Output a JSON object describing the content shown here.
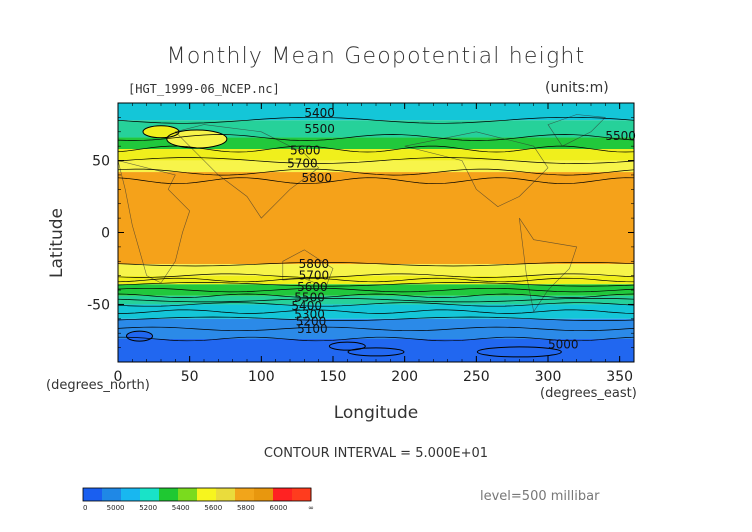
{
  "chart_data": {
    "type": "heatmap",
    "title": "Monthly Mean Geopotential height",
    "subtitle_left": "[HGT_1999-06_NCEP.nc]",
    "subtitle_right": "(units:m)",
    "xlabel": "Longitude",
    "ylabel": "Latitude",
    "x_unit": "(degrees_north)",
    "y_unit": "(degrees_east)",
    "xlim": [
      0,
      360
    ],
    "ylim": [
      -90,
      90
    ],
    "x_ticks": [
      0,
      50,
      100,
      150,
      200,
      250,
      300,
      350
    ],
    "y_ticks": [
      -50,
      0,
      50
    ],
    "contour_interval_text": "CONTOUR INTERVAL = 5.000E+01",
    "level_text": "level=500 millibar",
    "bands": [
      {
        "lat_from": 90,
        "lat_to": 78,
        "value": 5350
      },
      {
        "lat_from": 78,
        "lat_to": 66,
        "value": 5450
      },
      {
        "lat_from": 66,
        "lat_to": 58,
        "value": 5550
      },
      {
        "lat_from": 58,
        "lat_to": 50,
        "value": 5650
      },
      {
        "lat_from": 50,
        "lat_to": 42,
        "value": 5750
      },
      {
        "lat_from": 42,
        "lat_to": -22,
        "value": 5850
      },
      {
        "lat_from": -22,
        "lat_to": -30,
        "value": 5750
      },
      {
        "lat_from": -30,
        "lat_to": -36,
        "value": 5650
      },
      {
        "lat_from": -36,
        "lat_to": -44,
        "value": 5550
      },
      {
        "lat_from": -44,
        "lat_to": -50,
        "value": 5450
      },
      {
        "lat_from": -50,
        "lat_to": -60,
        "value": 5350
      },
      {
        "lat_from": -60,
        "lat_to": -74,
        "value": 5150
      },
      {
        "lat_from": -74,
        "lat_to": -90,
        "value": 5050
      }
    ],
    "contour_labels": [
      {
        "text": "5400",
        "lon": 130,
        "lat": 83
      },
      {
        "text": "5500",
        "lon": 130,
        "lat": 72
      },
      {
        "text": "5600",
        "lon": 120,
        "lat": 57
      },
      {
        "text": "5700",
        "lon": 118,
        "lat": 48
      },
      {
        "text": "5800",
        "lon": 128,
        "lat": 38
      },
      {
        "text": "5500",
        "lon": 340,
        "lat": 67
      },
      {
        "text": "5800",
        "lon": 126,
        "lat": -22
      },
      {
        "text": "5700",
        "lon": 126,
        "lat": -30
      },
      {
        "text": "5600",
        "lon": 125,
        "lat": -38
      },
      {
        "text": "5500",
        "lon": 123,
        "lat": -45
      },
      {
        "text": "5400",
        "lon": 121,
        "lat": -51
      },
      {
        "text": "5300",
        "lon": 123,
        "lat": -57
      },
      {
        "text": "5200",
        "lon": 124,
        "lat": -62
      },
      {
        "text": "5100",
        "lon": 125,
        "lat": -67
      },
      {
        "text": "5000",
        "lon": 300,
        "lat": -78
      }
    ],
    "colorbar": {
      "ticks": [
        "0",
        "5000",
        "5200",
        "5400",
        "5600",
        "5800",
        "6000",
        "∞"
      ],
      "colors": [
        "#1a5ff0",
        "#1f88e6",
        "#18b7f0",
        "#19e3c8",
        "#1fc832",
        "#7adb1e",
        "#f7f51e",
        "#eadc3c",
        "#f2a51a",
        "#e8970e",
        "#ff2222",
        "#ff3c1e"
      ]
    },
    "colors": {
      "5050": "#2167f0",
      "5150": "#2b8ae8",
      "5350": "#14c6d8",
      "5450": "#26d19a",
      "5550": "#21c83c",
      "5650": "#f0ef1c",
      "5750": "#f7f44a",
      "5850": "#f5a21a"
    }
  }
}
